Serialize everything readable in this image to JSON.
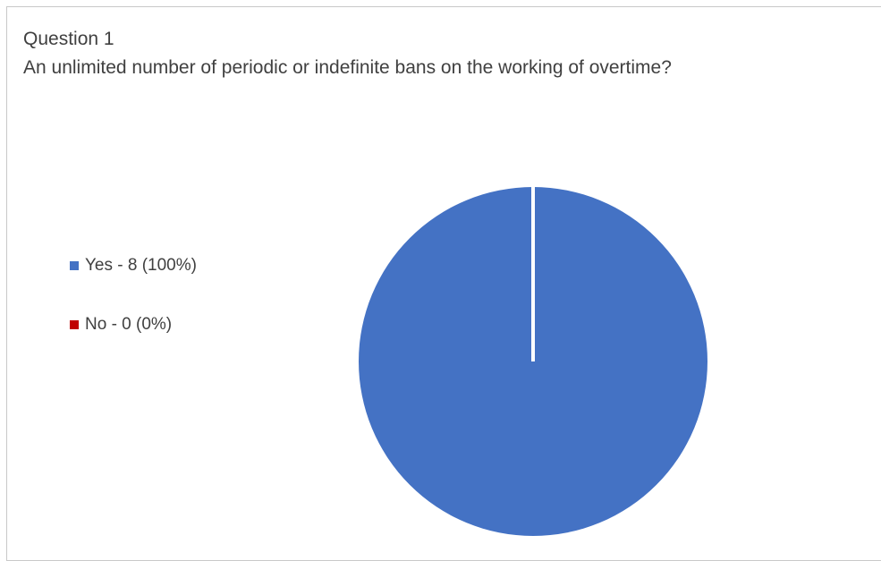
{
  "chart_data": {
    "type": "pie",
    "title": "Question 1",
    "subtitle": "An unlimited number of periodic or indefinite bans on the working of overtime?",
    "legend_position": "left",
    "slices": [
      {
        "label": "Yes - 8 (100%)",
        "category": "Yes",
        "value": 8,
        "percent": 100,
        "color": "#4472c4"
      },
      {
        "label": "No - 0 (0%)",
        "category": "No",
        "value": 0,
        "percent": 0,
        "color": "#c00000"
      }
    ]
  }
}
